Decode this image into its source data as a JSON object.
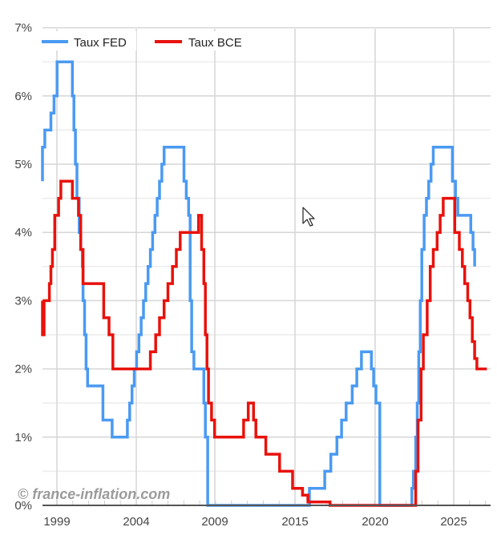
{
  "legend": {
    "fed_label": "Taux FED",
    "bce_label": "Taux BCE"
  },
  "watermark": "© france-inflation.com",
  "colors": {
    "fed": "#4a9af2",
    "bce": "#e8120c",
    "grid": "#dcdcdc",
    "axis": "#555555"
  },
  "chart_data": {
    "type": "line",
    "step": true,
    "title": "",
    "xlabel": "",
    "ylabel": "",
    "ylim": [
      0,
      7
    ],
    "yticks": [
      "0%",
      "1%",
      "2%",
      "3%",
      "4%",
      "5%",
      "6%",
      "7%"
    ],
    "xticks": [
      "1999",
      "2004",
      "2009",
      "2015",
      "2020",
      "2025"
    ],
    "legend_position": "top-left",
    "grid": true,
    "series": [
      {
        "name": "Taux FED",
        "color": "#4a9af2",
        "points": [
          [
            1998.1,
            4.75
          ],
          [
            1998.6,
            4.75
          ],
          [
            1998.6,
            5.0
          ],
          [
            1998.8,
            5.0
          ],
          [
            1998.8,
            5.25
          ],
          [
            1999.1,
            5.25
          ],
          [
            1999.1,
            5.5
          ],
          [
            1999.5,
            5.5
          ],
          [
            1999.5,
            5.75
          ],
          [
            1999.7,
            5.75
          ],
          [
            1999.7,
            6.0
          ],
          [
            1999.9,
            6.0
          ],
          [
            1999.9,
            6.5
          ],
          [
            2000.9,
            6.5
          ],
          [
            2000.9,
            6.0
          ],
          [
            2001.0,
            6.0
          ],
          [
            2001.0,
            5.5
          ],
          [
            2001.1,
            5.5
          ],
          [
            2001.1,
            5.0
          ],
          [
            2001.2,
            5.0
          ],
          [
            2001.2,
            4.5
          ],
          [
            2001.35,
            4.5
          ],
          [
            2001.35,
            4.0
          ],
          [
            2001.45,
            4.0
          ],
          [
            2001.45,
            3.75
          ],
          [
            2001.55,
            3.75
          ],
          [
            2001.55,
            3.5
          ],
          [
            2001.6,
            3.5
          ],
          [
            2001.6,
            3.0
          ],
          [
            2001.7,
            3.0
          ],
          [
            2001.7,
            2.5
          ],
          [
            2001.8,
            2.5
          ],
          [
            2001.8,
            2.0
          ],
          [
            2001.9,
            2.0
          ],
          [
            2001.9,
            1.75
          ],
          [
            2002.9,
            1.75
          ],
          [
            2002.9,
            1.25
          ],
          [
            2003.5,
            1.25
          ],
          [
            2003.5,
            1.0
          ],
          [
            2004.5,
            1.0
          ],
          [
            2004.5,
            1.25
          ],
          [
            2004.65,
            1.25
          ],
          [
            2004.65,
            1.5
          ],
          [
            2004.8,
            1.5
          ],
          [
            2004.8,
            1.75
          ],
          [
            2004.95,
            1.75
          ],
          [
            2004.95,
            2.0
          ],
          [
            2005.1,
            2.0
          ],
          [
            2005.1,
            2.25
          ],
          [
            2005.25,
            2.25
          ],
          [
            2005.25,
            2.5
          ],
          [
            2005.4,
            2.5
          ],
          [
            2005.4,
            2.75
          ],
          [
            2005.55,
            2.75
          ],
          [
            2005.55,
            3.0
          ],
          [
            2005.7,
            3.0
          ],
          [
            2005.7,
            3.25
          ],
          [
            2005.85,
            3.25
          ],
          [
            2005.85,
            3.5
          ],
          [
            2006.0,
            3.5
          ],
          [
            2006.0,
            3.75
          ],
          [
            2006.15,
            3.75
          ],
          [
            2006.15,
            4.0
          ],
          [
            2006.3,
            4.0
          ],
          [
            2006.3,
            4.25
          ],
          [
            2006.45,
            4.25
          ],
          [
            2006.45,
            4.5
          ],
          [
            2006.6,
            4.5
          ],
          [
            2006.6,
            4.75
          ],
          [
            2006.75,
            4.75
          ],
          [
            2006.75,
            5.0
          ],
          [
            2006.9,
            5.0
          ],
          [
            2006.9,
            5.25
          ],
          [
            2008.2,
            5.25
          ],
          [
            2008.2,
            4.75
          ],
          [
            2008.35,
            4.75
          ],
          [
            2008.35,
            4.5
          ],
          [
            2008.5,
            4.5
          ],
          [
            2008.5,
            4.25
          ],
          [
            2008.6,
            4.25
          ],
          [
            2008.6,
            3.0
          ],
          [
            2008.7,
            3.0
          ],
          [
            2008.7,
            2.25
          ],
          [
            2008.85,
            2.25
          ],
          [
            2008.85,
            2.0
          ],
          [
            2009.5,
            2.0
          ],
          [
            2009.5,
            1.5
          ],
          [
            2009.6,
            1.5
          ],
          [
            2009.6,
            1.0
          ],
          [
            2009.75,
            1.0
          ],
          [
            2009.75,
            0.0
          ],
          [
            2016.4,
            0.0
          ],
          [
            2016.4,
            0.25
          ],
          [
            2017.4,
            0.25
          ],
          [
            2017.4,
            0.5
          ],
          [
            2017.8,
            0.5
          ],
          [
            2017.8,
            0.75
          ],
          [
            2018.2,
            0.75
          ],
          [
            2018.2,
            1.0
          ],
          [
            2018.5,
            1.0
          ],
          [
            2018.5,
            1.25
          ],
          [
            2018.8,
            1.25
          ],
          [
            2018.8,
            1.5
          ],
          [
            2019.2,
            1.5
          ],
          [
            2019.2,
            1.75
          ],
          [
            2019.5,
            1.75
          ],
          [
            2019.5,
            2.0
          ],
          [
            2019.8,
            2.0
          ],
          [
            2019.8,
            2.25
          ],
          [
            2020.45,
            2.25
          ],
          [
            2020.45,
            2.0
          ],
          [
            2020.6,
            2.0
          ],
          [
            2020.6,
            1.75
          ],
          [
            2020.75,
            1.75
          ],
          [
            2020.75,
            1.5
          ],
          [
            2021.0,
            1.5
          ],
          [
            2021.0,
            0.0
          ],
          [
            2023.1,
            0.0
          ],
          [
            2023.1,
            0.25
          ],
          [
            2023.2,
            0.25
          ],
          [
            2023.2,
            0.5
          ],
          [
            2023.35,
            0.5
          ],
          [
            2023.35,
            1.0
          ],
          [
            2023.45,
            1.0
          ],
          [
            2023.45,
            1.5
          ],
          [
            2023.55,
            1.5
          ],
          [
            2023.55,
            2.25
          ],
          [
            2023.65,
            2.25
          ],
          [
            2023.65,
            3.0
          ],
          [
            2023.75,
            3.0
          ],
          [
            2023.75,
            3.75
          ],
          [
            2023.9,
            3.75
          ],
          [
            2023.9,
            4.25
          ],
          [
            2024.05,
            4.25
          ],
          [
            2024.05,
            4.5
          ],
          [
            2024.2,
            4.5
          ],
          [
            2024.2,
            4.75
          ],
          [
            2024.35,
            4.75
          ],
          [
            2024.35,
            5.0
          ],
          [
            2024.5,
            5.0
          ],
          [
            2024.5,
            5.25
          ],
          [
            2025.75,
            5.25
          ],
          [
            2025.75,
            4.75
          ],
          [
            2025.95,
            4.75
          ],
          [
            2025.95,
            4.5
          ],
          [
            2026.1,
            4.5
          ],
          [
            2026.1,
            4.25
          ],
          [
            2026.95,
            4.25
          ],
          [
            2026.95,
            4.0
          ],
          [
            2027.1,
            4.0
          ],
          [
            2027.1,
            3.75
          ],
          [
            2027.2,
            3.75
          ],
          [
            2027.2,
            3.5
          ]
        ]
      },
      {
        "name": "Taux BCE",
        "color": "#e8120c",
        "points": [
          [
            1998.1,
            3.0
          ],
          [
            1998.35,
            3.0
          ],
          [
            1998.35,
            2.5
          ],
          [
            1999.05,
            2.5
          ],
          [
            1999.05,
            3.0
          ],
          [
            1999.4,
            3.0
          ],
          [
            1999.4,
            3.25
          ],
          [
            1999.5,
            3.25
          ],
          [
            1999.5,
            3.5
          ],
          [
            1999.6,
            3.5
          ],
          [
            1999.6,
            3.75
          ],
          [
            1999.75,
            3.75
          ],
          [
            1999.75,
            4.25
          ],
          [
            2000.0,
            4.25
          ],
          [
            2000.0,
            4.5
          ],
          [
            2000.15,
            4.5
          ],
          [
            2000.15,
            4.75
          ],
          [
            2000.9,
            4.75
          ],
          [
            2000.9,
            4.5
          ],
          [
            2001.3,
            4.5
          ],
          [
            2001.3,
            4.25
          ],
          [
            2001.45,
            4.25
          ],
          [
            2001.45,
            3.75
          ],
          [
            2001.6,
            3.75
          ],
          [
            2001.6,
            3.25
          ],
          [
            2002.95,
            3.25
          ],
          [
            2002.95,
            2.75
          ],
          [
            2003.3,
            2.75
          ],
          [
            2003.3,
            2.5
          ],
          [
            2003.55,
            2.5
          ],
          [
            2003.55,
            2.0
          ],
          [
            2006.0,
            2.0
          ],
          [
            2006.0,
            2.25
          ],
          [
            2006.35,
            2.25
          ],
          [
            2006.35,
            2.5
          ],
          [
            2006.6,
            2.5
          ],
          [
            2006.6,
            2.75
          ],
          [
            2006.9,
            2.75
          ],
          [
            2006.9,
            3.0
          ],
          [
            2007.15,
            3.0
          ],
          [
            2007.15,
            3.25
          ],
          [
            2007.45,
            3.25
          ],
          [
            2007.45,
            3.5
          ],
          [
            2007.7,
            3.5
          ],
          [
            2007.7,
            3.75
          ],
          [
            2007.95,
            3.75
          ],
          [
            2007.95,
            4.0
          ],
          [
            2009.15,
            4.0
          ],
          [
            2009.15,
            4.25
          ],
          [
            2009.35,
            4.25
          ],
          [
            2009.35,
            3.75
          ],
          [
            2009.5,
            3.75
          ],
          [
            2009.5,
            3.25
          ],
          [
            2009.6,
            3.25
          ],
          [
            2009.6,
            2.5
          ],
          [
            2009.7,
            2.5
          ],
          [
            2009.7,
            2.0
          ],
          [
            2009.8,
            2.0
          ],
          [
            2009.8,
            1.5
          ],
          [
            2010.0,
            1.5
          ],
          [
            2010.0,
            1.25
          ],
          [
            2010.2,
            1.25
          ],
          [
            2010.2,
            1.0
          ],
          [
            2012.1,
            1.0
          ],
          [
            2012.1,
            1.25
          ],
          [
            2012.4,
            1.25
          ],
          [
            2012.4,
            1.5
          ],
          [
            2012.75,
            1.5
          ],
          [
            2012.75,
            1.25
          ],
          [
            2012.9,
            1.25
          ],
          [
            2012.9,
            1.0
          ],
          [
            2013.55,
            1.0
          ],
          [
            2013.55,
            0.75
          ],
          [
            2014.45,
            0.75
          ],
          [
            2014.45,
            0.5
          ],
          [
            2015.3,
            0.5
          ],
          [
            2015.3,
            0.25
          ],
          [
            2015.95,
            0.25
          ],
          [
            2015.95,
            0.15
          ],
          [
            2016.3,
            0.15
          ],
          [
            2016.3,
            0.05
          ],
          [
            2017.75,
            0.05
          ],
          [
            2017.75,
            0.0
          ],
          [
            2023.35,
            0.0
          ],
          [
            2023.35,
            0.5
          ],
          [
            2023.5,
            0.5
          ],
          [
            2023.5,
            1.25
          ],
          [
            2023.7,
            1.25
          ],
          [
            2023.7,
            2.0
          ],
          [
            2023.85,
            2.0
          ],
          [
            2023.85,
            2.5
          ],
          [
            2024.1,
            2.5
          ],
          [
            2024.1,
            3.0
          ],
          [
            2024.3,
            3.0
          ],
          [
            2024.3,
            3.5
          ],
          [
            2024.5,
            3.5
          ],
          [
            2024.5,
            3.75
          ],
          [
            2024.75,
            3.75
          ],
          [
            2024.75,
            4.0
          ],
          [
            2024.95,
            4.0
          ],
          [
            2024.95,
            4.25
          ],
          [
            2025.15,
            4.25
          ],
          [
            2025.15,
            4.5
          ],
          [
            2025.9,
            4.5
          ],
          [
            2025.9,
            4.0
          ],
          [
            2026.2,
            4.0
          ],
          [
            2026.2,
            3.75
          ],
          [
            2026.4,
            3.75
          ],
          [
            2026.4,
            3.5
          ],
          [
            2026.55,
            3.5
          ],
          [
            2026.55,
            3.25
          ],
          [
            2026.75,
            3.25
          ],
          [
            2026.75,
            3.0
          ],
          [
            2026.9,
            3.0
          ],
          [
            2026.9,
            2.75
          ],
          [
            2027.05,
            2.75
          ],
          [
            2027.05,
            2.4
          ],
          [
            2027.2,
            2.4
          ],
          [
            2027.2,
            2.15
          ],
          [
            2027.35,
            2.15
          ],
          [
            2027.35,
            2.0
          ],
          [
            2028.0,
            2.0
          ]
        ]
      }
    ]
  }
}
